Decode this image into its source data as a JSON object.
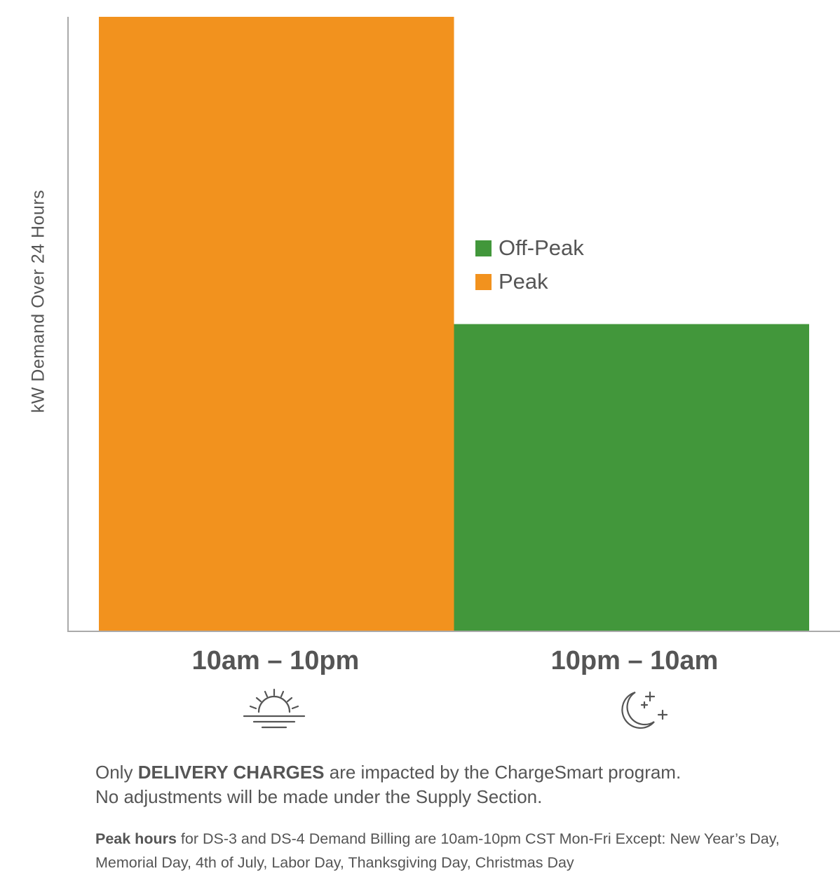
{
  "chart_data": {
    "type": "bar",
    "ylabel": "kW Demand Over 24 Hours",
    "categories": [
      "10am – 10pm",
      "10pm – 10am"
    ],
    "series": [
      {
        "name": "Peak",
        "color": "#F2921E",
        "values": [
          100,
          null
        ]
      },
      {
        "name": "Off-Peak",
        "color": "#42973B",
        "values": [
          null,
          50
        ]
      }
    ],
    "ylim": [
      0,
      100
    ],
    "y_ticks_shown": false,
    "grid": false,
    "legend": [
      "Off-Peak",
      "Peak"
    ],
    "legend_position": "center-right"
  },
  "colors": {
    "peak": "#F2921E",
    "off_peak": "#42973B",
    "axis": "#AAAAAA",
    "text": "#555555"
  },
  "icons": {
    "peak_period": "sunrise-icon",
    "off_peak_period": "moon-stars-icon"
  },
  "notes": {
    "line1": {
      "pre": "Only ",
      "bold": "DELIVERY CHARGES",
      "post": " are impacted by the ChargeSmart program."
    },
    "line2": "No adjustments will be made under the Supply Section.",
    "peak_hours": {
      "bold": "Peak hours",
      "rest": " for DS-3 and DS-4 Demand Billing are 10am-10pm CST Mon-Fri Except: New Year’s Day,",
      "line2": "Memorial Day, 4th of July, Labor Day, Thanksgiving Day, Christmas Day"
    }
  }
}
